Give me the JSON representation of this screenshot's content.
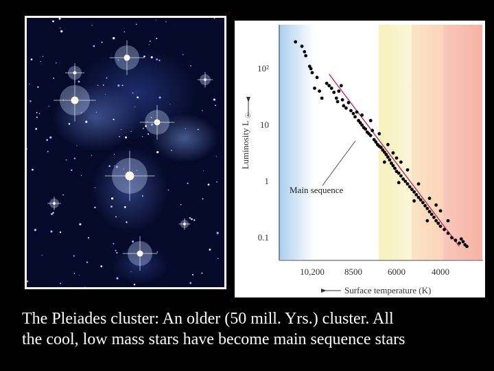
{
  "caption": {
    "line1": "The Pleiades cluster: An older (50 mill. Yrs.) cluster. All",
    "line2": "the cool, low mass stars have become main sequence stars"
  },
  "colors": {
    "background": "#000000",
    "photo_border": "#ffffff",
    "sequence_line": "#c0336e",
    "points": "#000000",
    "band_blue": "#d6e6f7",
    "band_yellow": "#f7f3c2",
    "band_orange": "#fbdcbc",
    "band_red": "#f9bdb0"
  },
  "chart_data": {
    "type": "scatter",
    "title": "",
    "xlabel": "Surface temperature (K)",
    "ylabel": "Luminosity",
    "ylabel_unit": "L",
    "x_scale": "reversed",
    "y_scale": "log",
    "x_ticks": [
      "10,200",
      "8500",
      "6000",
      "4000"
    ],
    "y_ticks": [
      "10²",
      "10",
      "1",
      "0.1"
    ],
    "annotation": "Main sequence",
    "main_sequence_line": [
      [
        9500,
        80
      ],
      [
        3500,
        0.07
      ]
    ],
    "points": [
      [
        11500,
        300
      ],
      [
        11000,
        250
      ],
      [
        10800,
        200
      ],
      [
        10700,
        170
      ],
      [
        10400,
        110
      ],
      [
        10300,
        100
      ],
      [
        10200,
        85
      ],
      [
        10000,
        70
      ],
      [
        10100,
        45
      ],
      [
        9900,
        40
      ],
      [
        9800,
        30
      ],
      [
        9600,
        55
      ],
      [
        9500,
        50
      ],
      [
        9400,
        45
      ],
      [
        9300,
        38
      ],
      [
        9200,
        30
      ],
      [
        9150,
        26
      ],
      [
        9100,
        40
      ],
      [
        9000,
        50
      ],
      [
        8950,
        28
      ],
      [
        8900,
        22
      ],
      [
        8800,
        20
      ],
      [
        8700,
        25
      ],
      [
        8600,
        18
      ],
      [
        8500,
        16
      ],
      [
        8400,
        14
      ],
      [
        8300,
        17
      ],
      [
        8200,
        12
      ],
      [
        8100,
        11
      ],
      [
        8000,
        10
      ],
      [
        7900,
        9
      ],
      [
        7800,
        8.5
      ],
      [
        7700,
        7.5
      ],
      [
        7600,
        7
      ],
      [
        7500,
        6.5
      ],
      [
        7400,
        8
      ],
      [
        7300,
        5.5
      ],
      [
        7200,
        5
      ],
      [
        7100,
        4.5
      ],
      [
        7000,
        4.2
      ],
      [
        6900,
        4
      ],
      [
        6800,
        3.6
      ],
      [
        6700,
        3.3
      ],
      [
        6600,
        3
      ],
      [
        6500,
        2.7
      ],
      [
        6400,
        2.4
      ],
      [
        6300,
        2.1
      ],
      [
        6200,
        1.9
      ],
      [
        6100,
        1.7
      ],
      [
        6000,
        1.5
      ],
      [
        5900,
        1.4
      ],
      [
        5800,
        1.25
      ],
      [
        5700,
        1.1
      ],
      [
        5600,
        1.0
      ],
      [
        5500,
        0.9
      ],
      [
        5400,
        0.8
      ],
      [
        5300,
        0.72
      ],
      [
        5200,
        0.65
      ],
      [
        5100,
        0.58
      ],
      [
        5000,
        0.52
      ],
      [
        4900,
        0.47
      ],
      [
        4800,
        0.42
      ],
      [
        4700,
        0.37
      ],
      [
        4600,
        0.33
      ],
      [
        4500,
        0.29
      ],
      [
        4400,
        0.26
      ],
      [
        4300,
        0.23
      ],
      [
        4200,
        0.2
      ],
      [
        4100,
        0.18
      ],
      [
        4000,
        0.16
      ],
      [
        3900,
        0.14
      ],
      [
        3800,
        0.12
      ],
      [
        3700,
        0.1
      ],
      [
        3600,
        0.09
      ],
      [
        3500,
        0.08
      ],
      [
        3450,
        0.095
      ],
      [
        3400,
        0.085
      ],
      [
        3350,
        0.075
      ],
      [
        3300,
        0.07
      ],
      [
        5000,
        0.9
      ],
      [
        5500,
        1.6
      ],
      [
        6000,
        2.6
      ],
      [
        6500,
        4.5
      ],
      [
        7000,
        7
      ],
      [
        4500,
        0.5
      ],
      [
        4200,
        0.38
      ],
      [
        4000,
        0.3
      ],
      [
        3800,
        0.2
      ],
      [
        7500,
        12
      ],
      [
        8000,
        15
      ],
      [
        6200,
        3.2
      ],
      [
        5800,
        2.2
      ],
      [
        4600,
        0.2
      ],
      [
        5200,
        0.45
      ],
      [
        5900,
        0.95
      ],
      [
        6700,
        2.2
      ]
    ],
    "xlim": [
      12500,
      3000
    ],
    "ylim": [
      0.05,
      500
    ],
    "grid": false,
    "legend": "none"
  }
}
